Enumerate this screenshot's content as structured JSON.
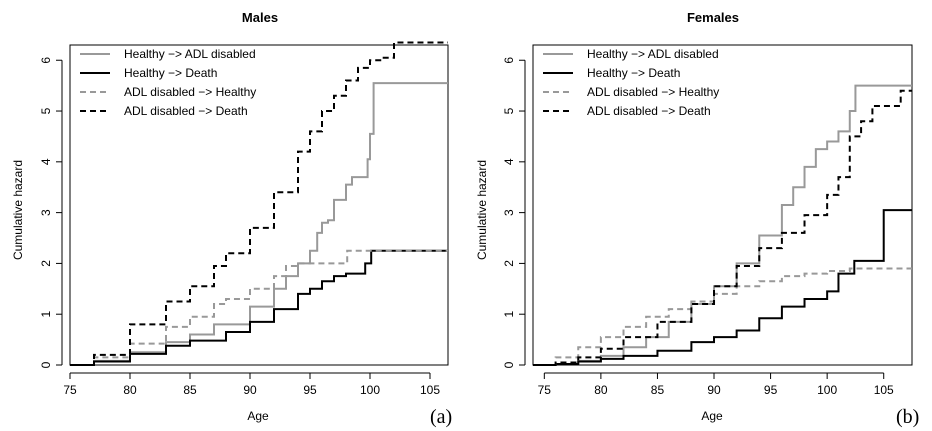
{
  "chart_data": [
    {
      "type": "line",
      "step": true,
      "title": "Males",
      "xlabel": "Age",
      "ylabel": "Cumulative hazard",
      "panel_label": "(a)",
      "xlim": [
        75,
        106.5
      ],
      "ylim": [
        0,
        6.3
      ],
      "xticks": [
        75,
        80,
        85,
        90,
        95,
        100,
        105
      ],
      "yticks": [
        0,
        1,
        2,
        3,
        4,
        5,
        6
      ],
      "legend_position": "top-left",
      "series": [
        {
          "name": "Healthy −> ADL disabled",
          "color": "#999999",
          "dash": "solid",
          "points": [
            [
              75,
              0
            ],
            [
              77,
              0.08
            ],
            [
              80,
              0.25
            ],
            [
              83,
              0.45
            ],
            [
              85,
              0.6
            ],
            [
              87,
              0.8
            ],
            [
              90,
              1.15
            ],
            [
              92,
              1.5
            ],
            [
              93,
              1.75
            ],
            [
              94,
              2.0
            ],
            [
              95,
              2.25
            ],
            [
              95.6,
              2.6
            ],
            [
              96,
              2.8
            ],
            [
              96.5,
              2.85
            ],
            [
              97,
              3.25
            ],
            [
              98,
              3.55
            ],
            [
              98.5,
              3.7
            ],
            [
              99.5,
              3.7
            ],
            [
              99.8,
              4.05
            ],
            [
              100,
              4.55
            ],
            [
              100.3,
              5.55
            ],
            [
              106.5,
              5.55
            ]
          ]
        },
        {
          "name": "Healthy −> Death",
          "color": "#000000",
          "dash": "solid",
          "points": [
            [
              75,
              0
            ],
            [
              77,
              0.07
            ],
            [
              80,
              0.22
            ],
            [
              83,
              0.38
            ],
            [
              85,
              0.48
            ],
            [
              88,
              0.65
            ],
            [
              90,
              0.85
            ],
            [
              92,
              1.1
            ],
            [
              94,
              1.4
            ],
            [
              95,
              1.5
            ],
            [
              96,
              1.65
            ],
            [
              97,
              1.75
            ],
            [
              98,
              1.8
            ],
            [
              99.5,
              1.8
            ],
            [
              99.6,
              2.0
            ],
            [
              100,
              2.0
            ],
            [
              100.1,
              2.25
            ],
            [
              106.5,
              2.25
            ]
          ]
        },
        {
          "name": "ADL disabled −> Healthy",
          "color": "#999999",
          "dash": "dashed",
          "points": [
            [
              75,
              0
            ],
            [
              77,
              0.15
            ],
            [
              80,
              0.42
            ],
            [
              83,
              0.75
            ],
            [
              85,
              0.95
            ],
            [
              87,
              1.2
            ],
            [
              88,
              1.3
            ],
            [
              90,
              1.5
            ],
            [
              92,
              1.75
            ],
            [
              93,
              1.95
            ],
            [
              94,
              2.0
            ],
            [
              97,
              2.0
            ],
            [
              98,
              2.0
            ],
            [
              98.1,
              2.25
            ],
            [
              106.5,
              2.25
            ]
          ]
        },
        {
          "name": "ADL disabled −> Death",
          "color": "#000000",
          "dash": "dashed",
          "points": [
            [
              75,
              0
            ],
            [
              77,
              0.2
            ],
            [
              80,
              0.8
            ],
            [
              83,
              1.25
            ],
            [
              85,
              1.55
            ],
            [
              87,
              1.95
            ],
            [
              88,
              2.2
            ],
            [
              90,
              2.7
            ],
            [
              92,
              3.4
            ],
            [
              94,
              4.2
            ],
            [
              95,
              4.6
            ],
            [
              96,
              5.0
            ],
            [
              97,
              5.3
            ],
            [
              98,
              5.6
            ],
            [
              99,
              5.85
            ],
            [
              100,
              6.0
            ],
            [
              101,
              6.05
            ],
            [
              102,
              6.35
            ],
            [
              106.5,
              6.35
            ]
          ]
        }
      ]
    },
    {
      "type": "line",
      "step": true,
      "title": "Females",
      "xlabel": "Age",
      "ylabel": "Cumulative hazard",
      "panel_label": "(b)",
      "xlim": [
        74,
        107.5
      ],
      "ylim": [
        0,
        6.3
      ],
      "xticks": [
        75,
        80,
        85,
        90,
        95,
        100,
        105
      ],
      "yticks": [
        0,
        1,
        2,
        3,
        4,
        5,
        6
      ],
      "legend_position": "top-left",
      "series": [
        {
          "name": "Healthy −> ADL disabled",
          "color": "#999999",
          "dash": "solid",
          "points": [
            [
              74,
              0
            ],
            [
              76,
              0.02
            ],
            [
              78,
              0.08
            ],
            [
              80,
              0.18
            ],
            [
              82,
              0.35
            ],
            [
              84,
              0.55
            ],
            [
              86,
              0.85
            ],
            [
              88,
              1.2
            ],
            [
              90,
              1.55
            ],
            [
              92,
              2.0
            ],
            [
              94,
              2.55
            ],
            [
              96,
              3.15
            ],
            [
              97,
              3.5
            ],
            [
              98,
              3.9
            ],
            [
              99,
              4.25
            ],
            [
              100,
              4.4
            ],
            [
              101,
              4.6
            ],
            [
              102,
              5.0
            ],
            [
              102.5,
              5.5
            ],
            [
              107.5,
              5.5
            ]
          ]
        },
        {
          "name": "Healthy −> Death",
          "color": "#000000",
          "dash": "solid",
          "points": [
            [
              74,
              0
            ],
            [
              76,
              0.02
            ],
            [
              78,
              0.07
            ],
            [
              80,
              0.12
            ],
            [
              82,
              0.18
            ],
            [
              85,
              0.28
            ],
            [
              88,
              0.45
            ],
            [
              90,
              0.55
            ],
            [
              92,
              0.68
            ],
            [
              94,
              0.92
            ],
            [
              96,
              1.15
            ],
            [
              98,
              1.3
            ],
            [
              100,
              1.45
            ],
            [
              101,
              1.8
            ],
            [
              102,
              1.8
            ],
            [
              102.4,
              2.05
            ],
            [
              104.5,
              2.05
            ],
            [
              105,
              3.05
            ],
            [
              107.5,
              3.05
            ]
          ]
        },
        {
          "name": "ADL disabled −> Healthy",
          "color": "#999999",
          "dash": "dashed",
          "points": [
            [
              74,
              0
            ],
            [
              76,
              0.15
            ],
            [
              78,
              0.35
            ],
            [
              80,
              0.55
            ],
            [
              82,
              0.75
            ],
            [
              84,
              0.95
            ],
            [
              86,
              1.1
            ],
            [
              88,
              1.25
            ],
            [
              90,
              1.4
            ],
            [
              92,
              1.55
            ],
            [
              94,
              1.65
            ],
            [
              96,
              1.75
            ],
            [
              98,
              1.8
            ],
            [
              100,
              1.85
            ],
            [
              102,
              1.9
            ],
            [
              107.5,
              1.9
            ]
          ]
        },
        {
          "name": "ADL disabled −> Death",
          "color": "#000000",
          "dash": "dashed",
          "points": [
            [
              74,
              0
            ],
            [
              76,
              0.05
            ],
            [
              78,
              0.15
            ],
            [
              80,
              0.32
            ],
            [
              82,
              0.55
            ],
            [
              85,
              0.85
            ],
            [
              88,
              1.2
            ],
            [
              90,
              1.55
            ],
            [
              92,
              1.95
            ],
            [
              94,
              2.3
            ],
            [
              96,
              2.6
            ],
            [
              98,
              2.95
            ],
            [
              100,
              3.35
            ],
            [
              101,
              3.7
            ],
            [
              102,
              4.5
            ],
            [
              103,
              4.8
            ],
            [
              104,
              5.1
            ],
            [
              106,
              5.1
            ],
            [
              106.5,
              5.4
            ],
            [
              107.5,
              5.4
            ]
          ]
        }
      ]
    }
  ]
}
